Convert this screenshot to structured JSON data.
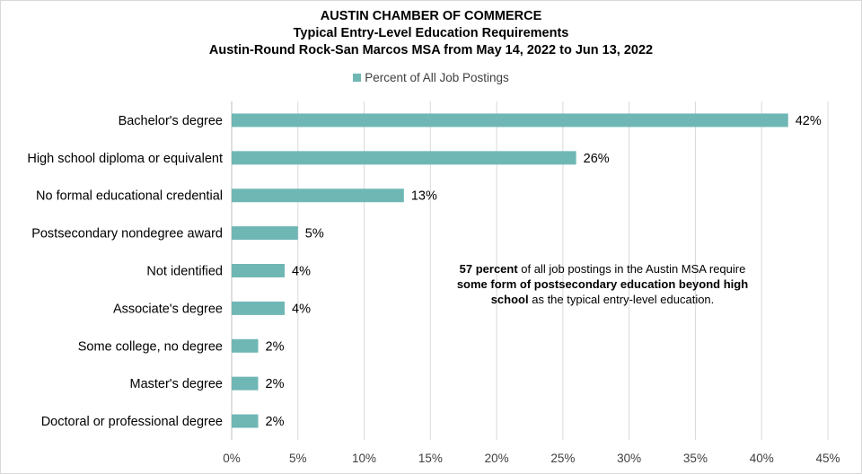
{
  "chart_data": {
    "type": "bar",
    "orientation": "horizontal",
    "title": "AUSTIN CHAMBER OF COMMERCE",
    "subtitle": "Typical Entry-Level Education Requirements",
    "subtitle2": "Austin-Round Rock-San Marcos MSA from May 14, 2022 to Jun 13, 2022",
    "categories": [
      "Bachelor's degree",
      "High school diploma or equivalent",
      "No formal educational credential",
      "Postsecondary nondegree award",
      "Not identified",
      "Associate's degree",
      "Some college, no degree",
      "Master's degree",
      "Doctoral or professional degree"
    ],
    "series": [
      {
        "name": "Percent of All Job Postings",
        "values": [
          42,
          26,
          13,
          5,
          4,
          4,
          2,
          2,
          2
        ],
        "labels": [
          "42%",
          "26%",
          "13%",
          "5%",
          "4%",
          "4%",
          "2%",
          "2%",
          "2%"
        ]
      }
    ],
    "xlim": [
      0,
      45
    ],
    "xticks": [
      0,
      5,
      10,
      15,
      20,
      25,
      30,
      35,
      40,
      45
    ],
    "xtick_labels": [
      "0%",
      "5%",
      "10%",
      "15%",
      "20%",
      "25%",
      "30%",
      "35%",
      "40%",
      "45%"
    ],
    "grid": "vertical",
    "legend_position": "top",
    "bar_color": "#6fb7b5",
    "annotation": {
      "bold1": "57 percent",
      "text1": " of all job postings in the Austin MSA require ",
      "bold2": "some form of postsecondary education beyond high school",
      "text2": " as the typical entry-level education."
    }
  }
}
